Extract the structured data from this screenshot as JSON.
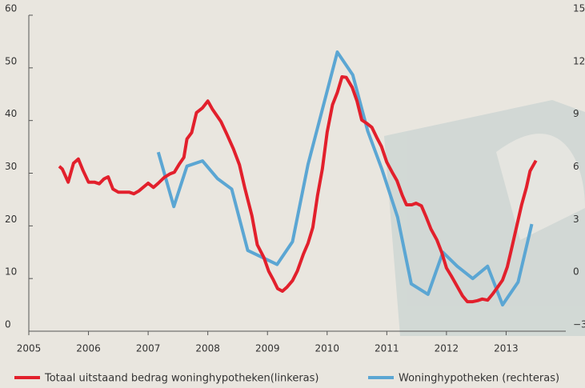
{
  "chart_data": {
    "type": "line",
    "xlim": [
      2005,
      2014
    ],
    "xticks": [
      2005,
      2006,
      2007,
      2008,
      2009,
      2010,
      2011,
      2012,
      2013
    ],
    "ylim": [
      0,
      60
    ],
    "yticks": [
      0,
      10,
      20,
      30,
      40,
      50,
      60
    ],
    "y2lim": [
      -3,
      15
    ],
    "y2ticks": [
      {
        "value": -3,
        "label": "−3"
      },
      0,
      3,
      6,
      9,
      12,
      15
    ],
    "legend": "bottom",
    "series": [
      {
        "name": "Totaal uitstaand bedrag woninghypotheken(linkeras)",
        "color": "#e2202c",
        "axis": "y",
        "x": [
          2005.51,
          2005.56,
          2005.66,
          2005.75,
          2005.83,
          2005.91,
          2006.0,
          2006.1,
          2006.18,
          2006.26,
          2006.33,
          2006.41,
          2006.5,
          2006.58,
          2006.68,
          2006.76,
          2006.84,
          2007.0,
          2007.09,
          2007.17,
          2007.27,
          2007.37,
          2007.44,
          2007.52,
          2007.6,
          2007.65,
          2007.73,
          2007.81,
          2007.91,
          2008.0,
          2008.08,
          2008.22,
          2008.32,
          2008.43,
          2008.53,
          2008.62,
          2008.74,
          2008.83,
          2008.94,
          2009.02,
          2009.1,
          2009.17,
          2009.25,
          2009.33,
          2009.42,
          2009.5,
          2009.6,
          2009.68,
          2009.76,
          2009.84,
          2009.92,
          2010.0,
          2010.09,
          2010.17,
          2010.25,
          2010.32,
          2010.42,
          2010.5,
          2010.58,
          2010.66,
          2010.75,
          2010.84,
          2010.91,
          2011.0,
          2011.09,
          2011.17,
          2011.26,
          2011.33,
          2011.42,
          2011.49,
          2011.58,
          2011.66,
          2011.74,
          2011.84,
          2011.92,
          2012.0,
          2012.08,
          2012.17,
          2012.27,
          2012.35,
          2012.44,
          2012.52,
          2012.6,
          2012.69,
          2012.77,
          2012.86,
          2012.94,
          2013.02,
          2013.1,
          2013.18,
          2013.26,
          2013.34,
          2013.4,
          2013.5
        ],
        "values": [
          31.3,
          30.8,
          28.3,
          31.9,
          32.7,
          30.5,
          28.3,
          28.3,
          28,
          28.9,
          29.3,
          27,
          26.4,
          26.4,
          26.4,
          26.1,
          26.6,
          28.1,
          27.3,
          28.1,
          29.2,
          29.9,
          30.2,
          31.7,
          33,
          36.5,
          37.7,
          41.5,
          42.4,
          43.7,
          42.1,
          39.8,
          37.4,
          34.6,
          31.6,
          27.2,
          21.9,
          16.4,
          14,
          11.4,
          9.7,
          8.1,
          7.6,
          8.4,
          9.6,
          11.4,
          14.6,
          16.7,
          19.7,
          25.8,
          30.8,
          37.8,
          43,
          45.3,
          48.3,
          48.2,
          46.3,
          43.7,
          40.1,
          39.5,
          38.7,
          36.6,
          35.1,
          32.1,
          30.2,
          28.6,
          25.8,
          24,
          24,
          24.3,
          23.8,
          21.7,
          19.4,
          17.3,
          15,
          12,
          10.5,
          8.7,
          6.7,
          5.6,
          5.6,
          5.8,
          6.1,
          5.9,
          7,
          8.4,
          9.7,
          12.2,
          16.1,
          20.1,
          24,
          27.3,
          30.4,
          32.4
        ]
      },
      {
        "name": "Woninghypotheken (rechteras)",
        "color": "#5ba6d3",
        "axis": "y2",
        "x": [
          2007.17,
          2007.43,
          2007.65,
          2007.91,
          2008.16,
          2008.4,
          2008.67,
          2009.16,
          2009.42,
          2009.68,
          2010.17,
          2010.43,
          2010.68,
          2010.92,
          2011.18,
          2011.41,
          2011.69,
          2011.94,
          2012.18,
          2012.44,
          2012.69,
          2012.94,
          2013.2,
          2013.43
        ],
        "values": [
          7.2,
          4.1,
          6.4,
          6.7,
          5.7,
          5.1,
          1.6,
          0.8,
          2.1,
          6.5,
          12.9,
          11.6,
          8.4,
          6.2,
          3.5,
          -0.3,
          -0.9,
          1.5,
          0.7,
          0,
          0.7,
          -1.5,
          -0.2,
          3.1
        ]
      }
    ]
  }
}
